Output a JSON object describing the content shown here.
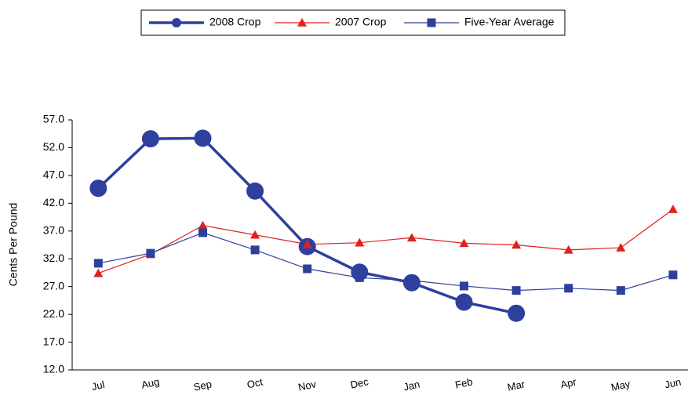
{
  "chart_data": {
    "type": "line",
    "y_label": "Cents Per Pound",
    "categories": [
      "Jul",
      "Aug",
      "Sep",
      "Oct",
      "Nov",
      "Dec",
      "Jan",
      "Feb",
      "Mar",
      "Apr",
      "May",
      "Jun"
    ],
    "series": [
      {
        "name": "2008 Crop",
        "color": "#2e3f9e",
        "marker": "circle",
        "line_width": 3.5,
        "values": [
          44.7,
          53.6,
          53.7,
          44.2,
          34.2,
          29.6,
          27.7,
          24.2,
          22.2,
          null,
          null,
          null
        ]
      },
      {
        "name": "2007 Crop",
        "color": "#e02020",
        "marker": "triangle",
        "line_width": 1.2,
        "values": [
          29.4,
          32.8,
          38.0,
          36.3,
          34.6,
          34.9,
          35.8,
          34.8,
          34.5,
          33.6,
          34.0,
          40.9
        ]
      },
      {
        "name": "Five-Year Average",
        "color": "#2e3f9e",
        "marker": "square",
        "line_width": 1.2,
        "values": [
          31.2,
          33.0,
          36.7,
          33.6,
          30.2,
          28.6,
          28.1,
          27.1,
          26.3,
          26.7,
          26.3,
          29.1
        ]
      }
    ],
    "ylim": [
      12,
      57
    ],
    "yticks": [
      {
        "value": 12,
        "label": "12.0"
      },
      {
        "value": 17,
        "label": "17.0"
      },
      {
        "value": 22,
        "label": "22.0"
      },
      {
        "value": 27,
        "label": "27.0"
      },
      {
        "value": 32,
        "label": "32.0"
      },
      {
        "value": 37,
        "label": "37.0"
      },
      {
        "value": 42,
        "label": "42.0"
      },
      {
        "value": 47,
        "label": "47.0"
      },
      {
        "value": 52,
        "label": "52.0"
      },
      {
        "value": 57,
        "label": "57.0"
      }
    ],
    "grid": false,
    "legend": "top"
  }
}
